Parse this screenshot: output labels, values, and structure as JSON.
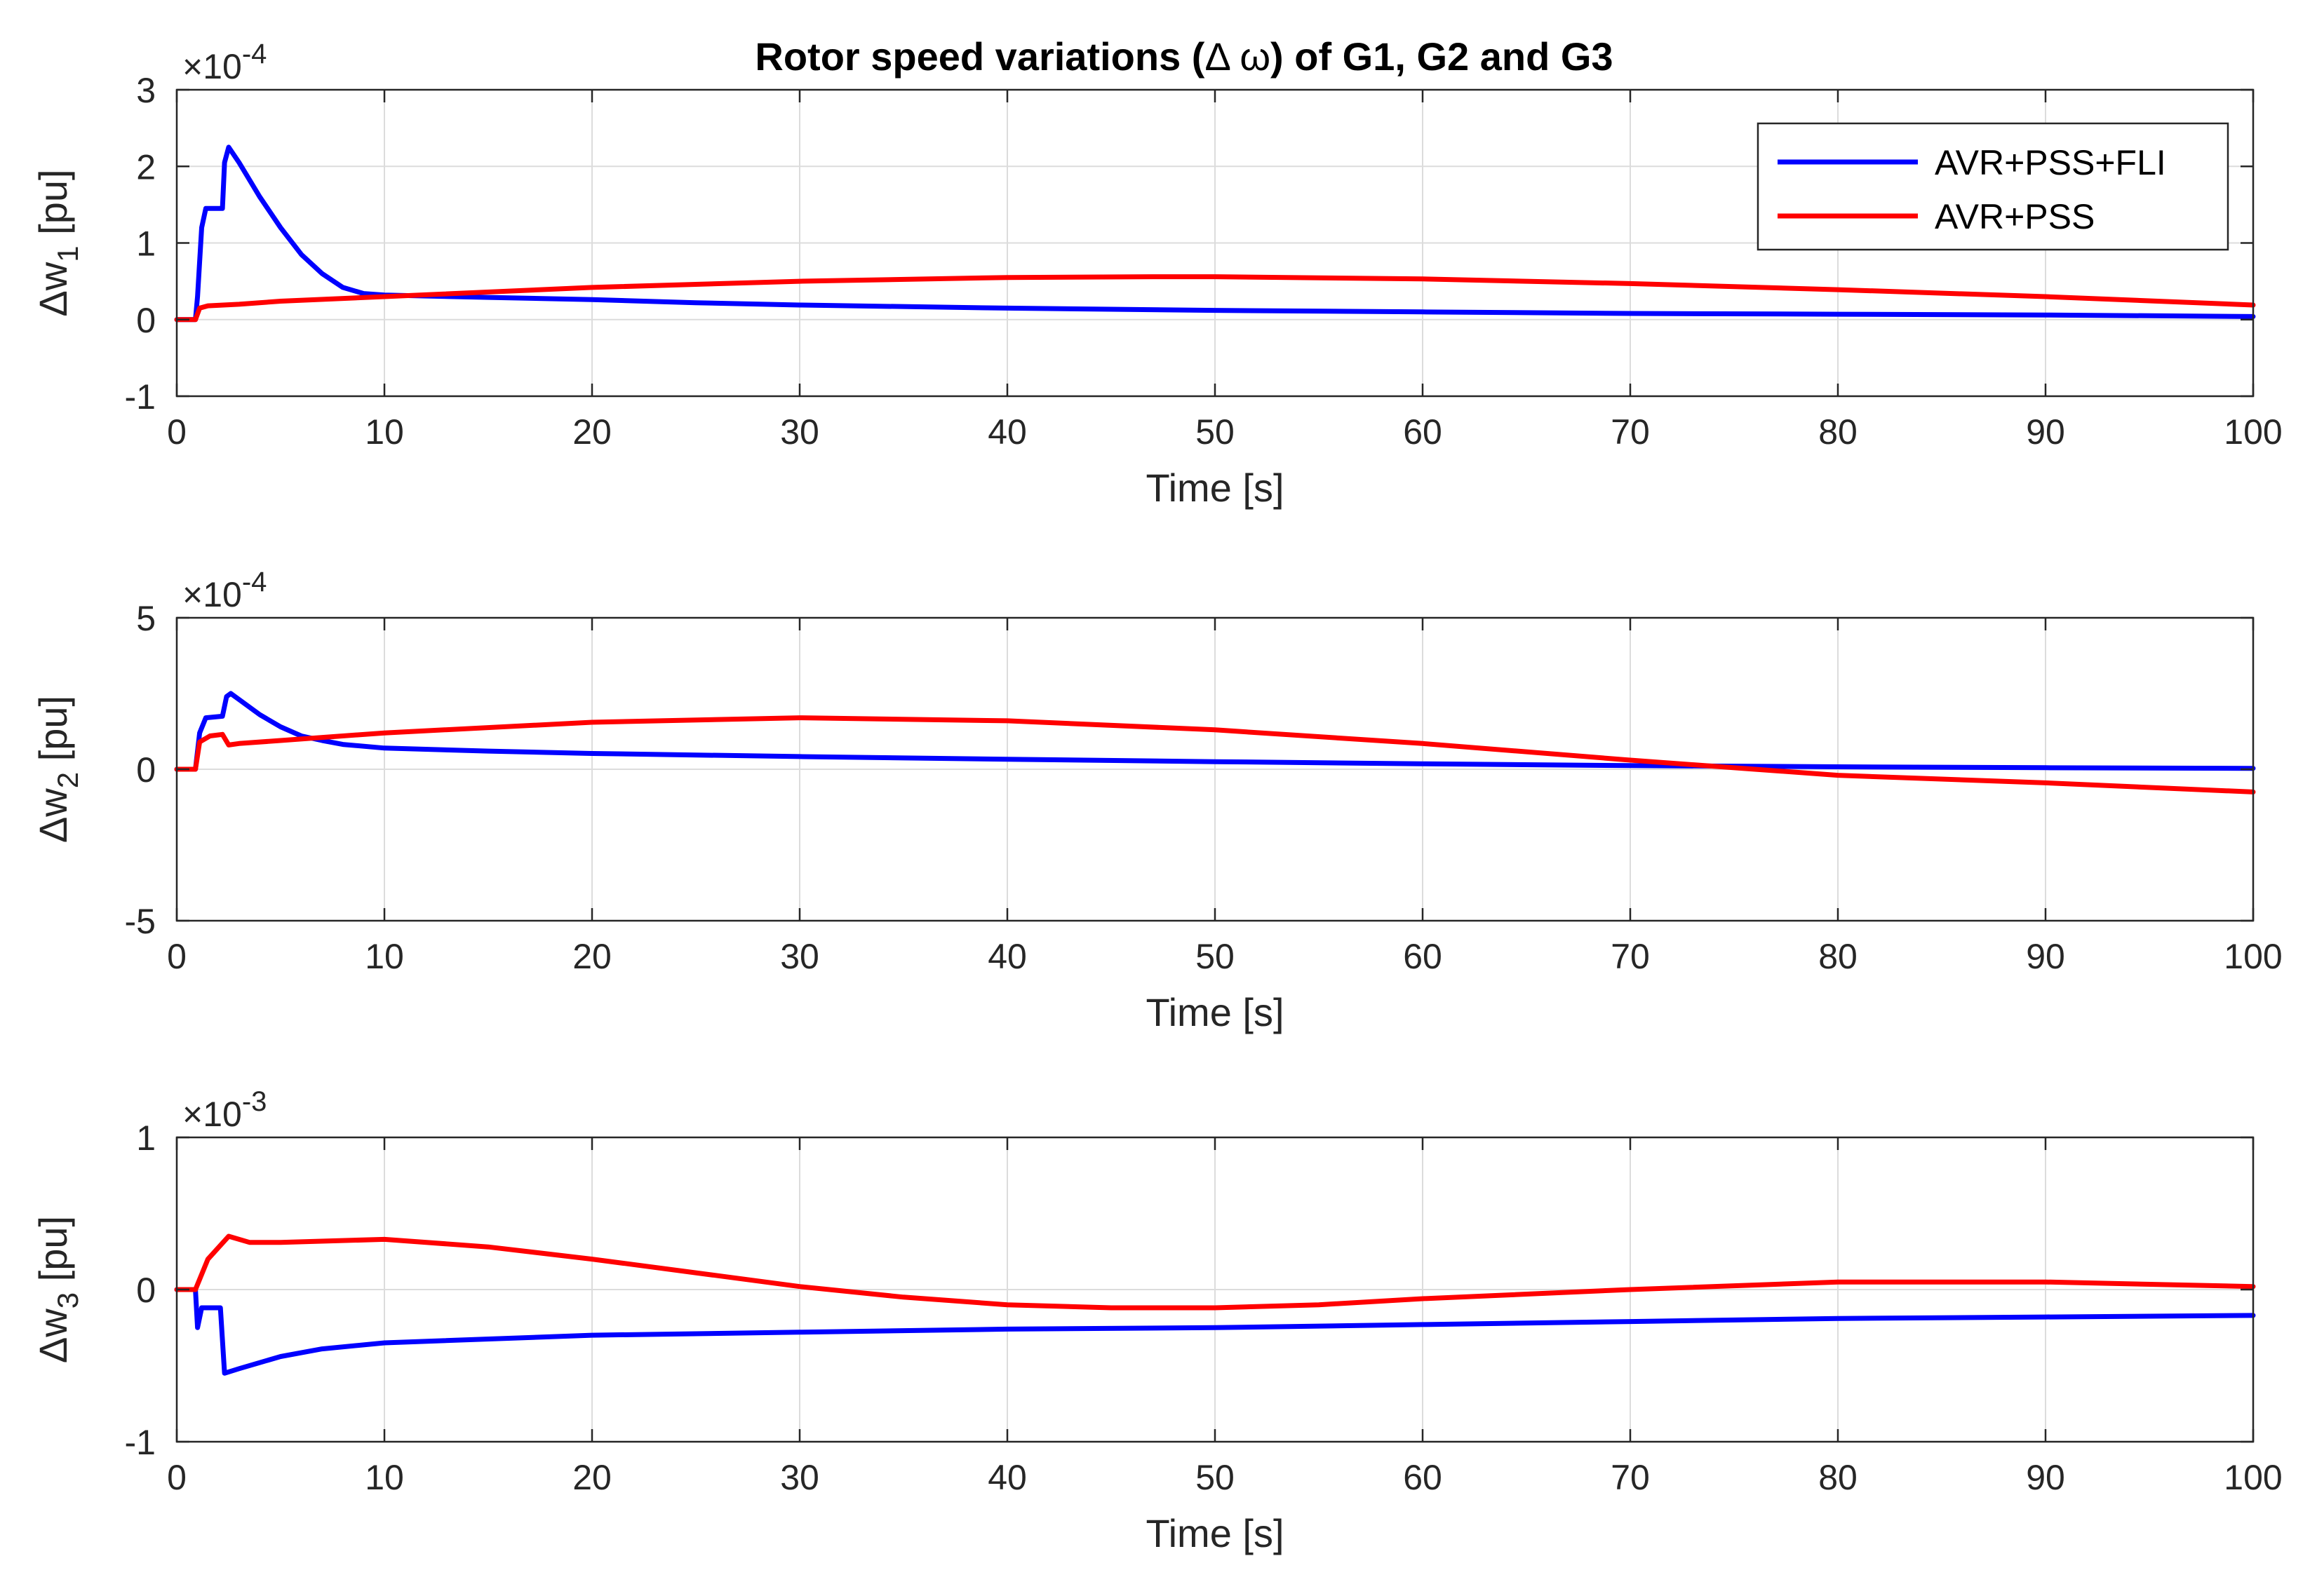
{
  "figure": {
    "title_prefix": "Rotor speed variations (",
    "title_symbol": "Δ ω",
    "title_suffix": ") of G1, G2 and G3"
  },
  "colors": {
    "avr_pss_fli": "#0000ff",
    "avr_pss": "#ff0000"
  },
  "legend": {
    "placement": "top-right",
    "entries": [
      "AVR+PSS+FLI",
      "AVR+PSS"
    ]
  },
  "chart_data": [
    {
      "type": "line",
      "title": "Rotor speed variations (Δ ω) of G1, G2 and G3",
      "ylabel_base": "Δw",
      "ylabel_sub": "1",
      "ylabel_unit": " [pu]",
      "xlabel": "Time [s]",
      "exponent_base": "×10",
      "exponent_power": "-4",
      "xlim": [
        0,
        100
      ],
      "ylim": [
        -1,
        3
      ],
      "xticks": [
        "0",
        "10",
        "20",
        "30",
        "40",
        "50",
        "60",
        "70",
        "80",
        "90",
        "100"
      ],
      "yticks": [
        "3",
        "2",
        "1",
        "0",
        "-1"
      ],
      "ytick_values": [
        3,
        2,
        1,
        0,
        -1
      ],
      "grid": true,
      "series": [
        {
          "name": "AVR+PSS+FLI",
          "color_key": "avr_pss_fli",
          "points": [
            [
              0,
              0
            ],
            [
              0.9,
              0
            ],
            [
              1,
              0.3
            ],
            [
              1.2,
              1.2
            ],
            [
              1.4,
              1.45
            ],
            [
              2.2,
              1.45
            ],
            [
              2.3,
              2.05
            ],
            [
              2.5,
              2.25
            ],
            [
              3,
              2.05
            ],
            [
              4,
              1.6
            ],
            [
              5,
              1.2
            ],
            [
              6,
              0.85
            ],
            [
              7,
              0.6
            ],
            [
              8,
              0.42
            ],
            [
              9,
              0.34
            ],
            [
              10,
              0.32
            ],
            [
              15,
              0.29
            ],
            [
              20,
              0.26
            ],
            [
              25,
              0.22
            ],
            [
              30,
              0.19
            ],
            [
              40,
              0.15
            ],
            [
              50,
              0.12
            ],
            [
              60,
              0.1
            ],
            [
              70,
              0.08
            ],
            [
              80,
              0.07
            ],
            [
              90,
              0.06
            ],
            [
              100,
              0.04
            ]
          ]
        },
        {
          "name": "AVR+PSS",
          "color_key": "avr_pss",
          "points": [
            [
              0,
              0
            ],
            [
              0.9,
              0
            ],
            [
              1.1,
              0.15
            ],
            [
              1.5,
              0.18
            ],
            [
              3,
              0.2
            ],
            [
              5,
              0.24
            ],
            [
              10,
              0.3
            ],
            [
              20,
              0.42
            ],
            [
              30,
              0.5
            ],
            [
              40,
              0.55
            ],
            [
              47,
              0.56
            ],
            [
              50,
              0.56
            ],
            [
              60,
              0.53
            ],
            [
              70,
              0.47
            ],
            [
              80,
              0.39
            ],
            [
              90,
              0.3
            ],
            [
              100,
              0.19
            ]
          ]
        }
      ]
    },
    {
      "type": "line",
      "ylabel_base": "Δw",
      "ylabel_sub": "2",
      "ylabel_unit": " [pu]",
      "xlabel": "Time [s]",
      "exponent_base": "×10",
      "exponent_power": "-4",
      "xlim": [
        0,
        100
      ],
      "ylim": [
        -5,
        5
      ],
      "xticks": [
        "0",
        "10",
        "20",
        "30",
        "40",
        "50",
        "60",
        "70",
        "80",
        "90",
        "100"
      ],
      "yticks": [
        "5",
        "0",
        "-5"
      ],
      "ytick_values": [
        5,
        0,
        -5
      ],
      "grid": true,
      "series": [
        {
          "name": "AVR+PSS+FLI",
          "color_key": "avr_pss_fli",
          "points": [
            [
              0,
              0
            ],
            [
              0.9,
              0
            ],
            [
              1.1,
              1.2
            ],
            [
              1.4,
              1.7
            ],
            [
              2.2,
              1.75
            ],
            [
              2.4,
              2.4
            ],
            [
              2.6,
              2.5
            ],
            [
              3,
              2.3
            ],
            [
              4,
              1.8
            ],
            [
              5,
              1.4
            ],
            [
              6,
              1.1
            ],
            [
              7,
              0.95
            ],
            [
              8,
              0.82
            ],
            [
              10,
              0.7
            ],
            [
              15,
              0.6
            ],
            [
              20,
              0.52
            ],
            [
              30,
              0.42
            ],
            [
              40,
              0.33
            ],
            [
              50,
              0.25
            ],
            [
              60,
              0.18
            ],
            [
              70,
              0.12
            ],
            [
              80,
              0.08
            ],
            [
              90,
              0.05
            ],
            [
              100,
              0.03
            ]
          ]
        },
        {
          "name": "AVR+PSS",
          "color_key": "avr_pss",
          "points": [
            [
              0,
              0
            ],
            [
              0.9,
              0
            ],
            [
              1.1,
              0.9
            ],
            [
              1.6,
              1.1
            ],
            [
              2.2,
              1.15
            ],
            [
              2.5,
              0.8
            ],
            [
              3,
              0.85
            ],
            [
              5,
              0.95
            ],
            [
              10,
              1.2
            ],
            [
              20,
              1.55
            ],
            [
              30,
              1.7
            ],
            [
              40,
              1.6
            ],
            [
              50,
              1.3
            ],
            [
              60,
              0.85
            ],
            [
              70,
              0.3
            ],
            [
              76,
              0
            ],
            [
              80,
              -0.2
            ],
            [
              90,
              -0.45
            ],
            [
              100,
              -0.75
            ]
          ]
        }
      ]
    },
    {
      "type": "line",
      "ylabel_base": "Δw",
      "ylabel_sub": "3",
      "ylabel_unit": " [pu]",
      "xlabel": "Time [s]",
      "exponent_base": "×10",
      "exponent_power": "-3",
      "xlim": [
        0,
        100
      ],
      "ylim": [
        -1,
        1
      ],
      "xticks": [
        "0",
        "10",
        "20",
        "30",
        "40",
        "50",
        "60",
        "70",
        "80",
        "90",
        "100"
      ],
      "yticks": [
        "1",
        "0",
        "-1"
      ],
      "ytick_values": [
        1,
        0,
        -1
      ],
      "grid": true,
      "series": [
        {
          "name": "AVR+PSS+FLI",
          "color_key": "avr_pss_fli",
          "points": [
            [
              0,
              0
            ],
            [
              0.9,
              0
            ],
            [
              1,
              -0.25
            ],
            [
              1.2,
              -0.12
            ],
            [
              2.1,
              -0.12
            ],
            [
              2.3,
              -0.55
            ],
            [
              3,
              -0.52
            ],
            [
              5,
              -0.44
            ],
            [
              7,
              -0.39
            ],
            [
              10,
              -0.35
            ],
            [
              20,
              -0.3
            ],
            [
              30,
              -0.28
            ],
            [
              40,
              -0.26
            ],
            [
              50,
              -0.25
            ],
            [
              60,
              -0.23
            ],
            [
              70,
              -0.21
            ],
            [
              80,
              -0.19
            ],
            [
              90,
              -0.18
            ],
            [
              100,
              -0.17
            ]
          ]
        },
        {
          "name": "AVR+PSS",
          "color_key": "avr_pss",
          "points": [
            [
              0,
              0
            ],
            [
              0.9,
              0
            ],
            [
              1.5,
              0.2
            ],
            [
              2.5,
              0.35
            ],
            [
              3.5,
              0.31
            ],
            [
              5,
              0.31
            ],
            [
              10,
              0.33
            ],
            [
              15,
              0.28
            ],
            [
              20,
              0.2
            ],
            [
              25,
              0.11
            ],
            [
              30,
              0.02
            ],
            [
              35,
              -0.05
            ],
            [
              40,
              -0.1
            ],
            [
              45,
              -0.12
            ],
            [
              50,
              -0.12
            ],
            [
              55,
              -0.1
            ],
            [
              60,
              -0.06
            ],
            [
              70,
              0
            ],
            [
              80,
              0.05
            ],
            [
              85,
              0.05
            ],
            [
              90,
              0.05
            ],
            [
              100,
              0.02
            ]
          ]
        }
      ]
    }
  ]
}
